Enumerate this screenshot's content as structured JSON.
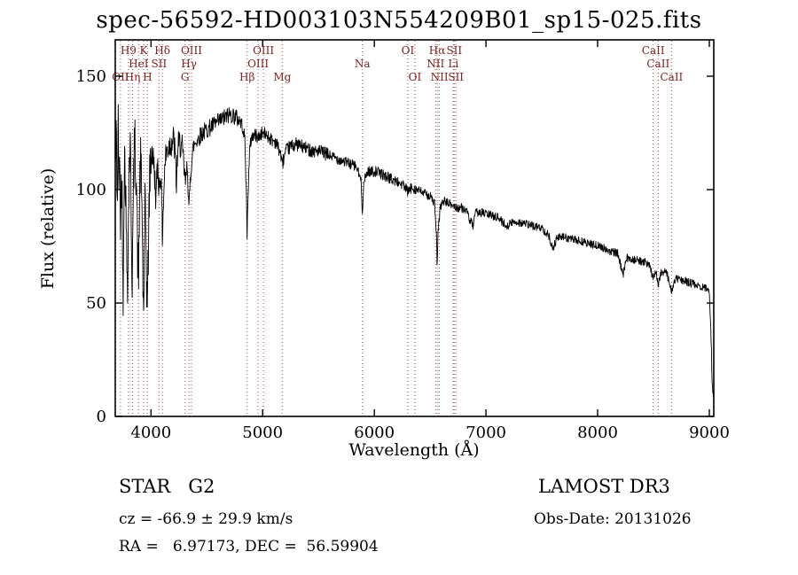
{
  "annotations": {
    "class_label": "STAR   G2",
    "survey": "LAMOST DR3",
    "cz": "cz = -66.9 ± 29.9 km/s",
    "obs_date": "Obs-Date: 20131026",
    "radec": "RA =   6.97173, DEC =  56.59904"
  },
  "chart_data": {
    "type": "line",
    "title": "spec-56592-HD003103N554209B01_sp15-025.fits",
    "xlabel": "Wavelength (Å)",
    "ylabel": "Flux (relative)",
    "xlim": [
      3680,
      9040
    ],
    "ylim": [
      0,
      166
    ],
    "x_ticks": [
      4000,
      5000,
      6000,
      7000,
      8000,
      9000
    ],
    "y_ticks": [
      0,
      50,
      100,
      150
    ],
    "grid": false,
    "legend": "none",
    "line_color": "#000000",
    "marker_color": "#aa4f4f",
    "label_color": "#7e2020",
    "spectral_lines": [
      {
        "wl": 3727,
        "label": "OII",
        "row": 3
      },
      {
        "wl": 3798,
        "label": "H9",
        "row": 1
      },
      {
        "wl": 3835,
        "label": "Hη",
        "row": 3
      },
      {
        "wl": 3889,
        "label": "HeI",
        "row": 2
      },
      {
        "wl": 3934,
        "label": "K",
        "row": 1
      },
      {
        "wl": 3968,
        "label": "H",
        "row": 3
      },
      {
        "wl": 4072,
        "label": "SII",
        "row": 2
      },
      {
        "wl": 4102,
        "label": "Hδ",
        "row": 1
      },
      {
        "wl": 4305,
        "label": "G",
        "row": 3
      },
      {
        "wl": 4340,
        "label": "Hγ",
        "row": 2
      },
      {
        "wl": 4363,
        "label": "OIII",
        "row": 1
      },
      {
        "wl": 4861,
        "label": "Hβ",
        "row": 3
      },
      {
        "wl": 4959,
        "label": "OIII",
        "row": 2
      },
      {
        "wl": 5007,
        "label": "OIII",
        "row": 1
      },
      {
        "wl": 5175,
        "label": "Mg",
        "row": 3
      },
      {
        "wl": 5893,
        "label": "Na",
        "row": 2
      },
      {
        "wl": 6300,
        "label": "OI",
        "row": 1
      },
      {
        "wl": 6363,
        "label": "OI",
        "row": 3
      },
      {
        "wl": 6548,
        "label": "NII",
        "row": 2
      },
      {
        "wl": 6563,
        "label": "Hα",
        "row": 1
      },
      {
        "wl": 6583,
        "label": "NII",
        "row": 3
      },
      {
        "wl": 6708,
        "label": "Li",
        "row": 2
      },
      {
        "wl": 6716,
        "label": "SII",
        "row": 1
      },
      {
        "wl": 6731,
        "label": "SII",
        "row": 3
      },
      {
        "wl": 8498,
        "label": "CaII",
        "row": 1
      },
      {
        "wl": 8542,
        "label": "CaII",
        "row": 2
      },
      {
        "wl": 8662,
        "label": "CaII",
        "row": 3
      }
    ],
    "continuum_points": [
      [
        3682,
        110
      ],
      [
        3690,
        125
      ],
      [
        3698,
        92
      ],
      [
        3706,
        128
      ],
      [
        3714,
        100
      ],
      [
        3722,
        116
      ],
      [
        3727,
        78
      ],
      [
        3734,
        108
      ],
      [
        3742,
        95
      ],
      [
        3750,
        50
      ],
      [
        3758,
        103
      ],
      [
        3766,
        117
      ],
      [
        3774,
        96
      ],
      [
        3782,
        70
      ],
      [
        3790,
        62
      ],
      [
        3798,
        85
      ],
      [
        3806,
        114
      ],
      [
        3814,
        119
      ],
      [
        3822,
        96
      ],
      [
        3830,
        58
      ],
      [
        3838,
        80
      ],
      [
        3846,
        110
      ],
      [
        3854,
        121
      ],
      [
        3862,
        114
      ],
      [
        3870,
        104
      ],
      [
        3880,
        72
      ],
      [
        3889,
        62
      ],
      [
        3898,
        100
      ],
      [
        3906,
        111
      ],
      [
        3914,
        104
      ],
      [
        3922,
        85
      ],
      [
        3930,
        48
      ],
      [
        3938,
        56
      ],
      [
        3946,
        90
      ],
      [
        3954,
        84
      ],
      [
        3962,
        55
      ],
      [
        3970,
        52
      ],
      [
        3978,
        80
      ],
      [
        3986,
        100
      ],
      [
        3994,
        112
      ],
      [
        4002,
        115
      ],
      [
        4010,
        117
      ],
      [
        4026,
        111
      ],
      [
        4045,
        96
      ],
      [
        4060,
        112
      ],
      [
        4072,
        101
      ],
      [
        4088,
        108
      ],
      [
        4102,
        80
      ],
      [
        4112,
        96
      ],
      [
        4126,
        112
      ],
      [
        4140,
        117
      ],
      [
        4160,
        119
      ],
      [
        4180,
        121
      ],
      [
        4200,
        122
      ],
      [
        4215,
        117
      ],
      [
        4226,
        101
      ],
      [
        4240,
        118
      ],
      [
        4260,
        121
      ],
      [
        4280,
        117
      ],
      [
        4300,
        107
      ],
      [
        4310,
        103
      ],
      [
        4325,
        112
      ],
      [
        4340,
        90
      ],
      [
        4352,
        105
      ],
      [
        4363,
        112
      ],
      [
        4380,
        119
      ],
      [
        4400,
        121
      ],
      [
        4430,
        123
      ],
      [
        4460,
        125
      ],
      [
        4490,
        126
      ],
      [
        4520,
        127
      ],
      [
        4550,
        128
      ],
      [
        4580,
        129
      ],
      [
        4610,
        130
      ],
      [
        4640,
        131
      ],
      [
        4670,
        132
      ],
      [
        4700,
        133
      ],
      [
        4730,
        133
      ],
      [
        4760,
        132
      ],
      [
        4780,
        131
      ],
      [
        4800,
        130
      ],
      [
        4820,
        128
      ],
      [
        4840,
        122
      ],
      [
        4853,
        100
      ],
      [
        4861,
        80
      ],
      [
        4870,
        100
      ],
      [
        4885,
        118
      ],
      [
        4900,
        123
      ],
      [
        4920,
        124
      ],
      [
        4940,
        124
      ],
      [
        4959,
        123
      ],
      [
        4980,
        124
      ],
      [
        5000,
        125
      ],
      [
        5040,
        124
      ],
      [
        5080,
        122
      ],
      [
        5120,
        121
      ],
      [
        5160,
        116
      ],
      [
        5175,
        111
      ],
      [
        5185,
        113
      ],
      [
        5210,
        117
      ],
      [
        5250,
        119
      ],
      [
        5300,
        120
      ],
      [
        5350,
        119
      ],
      [
        5400,
        118
      ],
      [
        5450,
        117
      ],
      [
        5500,
        117
      ],
      [
        5550,
        116
      ],
      [
        5600,
        115
      ],
      [
        5650,
        114
      ],
      [
        5700,
        113
      ],
      [
        5750,
        112
      ],
      [
        5800,
        111
      ],
      [
        5840,
        110
      ],
      [
        5880,
        104
      ],
      [
        5893,
        91
      ],
      [
        5906,
        103
      ],
      [
        5940,
        108
      ],
      [
        5980,
        108
      ],
      [
        6020,
        108
      ],
      [
        6100,
        106
      ],
      [
        6180,
        104
      ],
      [
        6260,
        102
      ],
      [
        6300,
        99
      ],
      [
        6340,
        101
      ],
      [
        6380,
        100
      ],
      [
        6420,
        99
      ],
      [
        6460,
        98
      ],
      [
        6500,
        97
      ],
      [
        6540,
        94
      ],
      [
        6556,
        80
      ],
      [
        6563,
        64
      ],
      [
        6570,
        80
      ],
      [
        6590,
        92
      ],
      [
        6620,
        95
      ],
      [
        6660,
        94
      ],
      [
        6700,
        93
      ],
      [
        6740,
        92
      ],
      [
        6780,
        92
      ],
      [
        6820,
        91
      ],
      [
        6860,
        86
      ],
      [
        6885,
        84
      ],
      [
        6910,
        90
      ],
      [
        6950,
        90
      ],
      [
        7020,
        89
      ],
      [
        7100,
        88
      ],
      [
        7180,
        84
      ],
      [
        7260,
        86
      ],
      [
        7340,
        85
      ],
      [
        7420,
        84
      ],
      [
        7500,
        83
      ],
      [
        7560,
        80
      ],
      [
        7600,
        74
      ],
      [
        7640,
        79
      ],
      [
        7700,
        79
      ],
      [
        7780,
        78
      ],
      [
        7860,
        77
      ],
      [
        7940,
        76
      ],
      [
        8020,
        75
      ],
      [
        8100,
        73
      ],
      [
        8180,
        72
      ],
      [
        8228,
        62
      ],
      [
        8260,
        70
      ],
      [
        8340,
        69
      ],
      [
        8420,
        68
      ],
      [
        8460,
        67
      ],
      [
        8498,
        61
      ],
      [
        8520,
        65
      ],
      [
        8542,
        58
      ],
      [
        8570,
        64
      ],
      [
        8620,
        63
      ],
      [
        8662,
        55
      ],
      [
        8700,
        61
      ],
      [
        8760,
        60
      ],
      [
        8820,
        59
      ],
      [
        8880,
        58
      ],
      [
        8940,
        57
      ],
      [
        8990,
        56
      ],
      [
        9000,
        55
      ],
      [
        9012,
        42
      ],
      [
        9026,
        14
      ],
      [
        9036,
        10
      ]
    ],
    "noise": {
      "seed": 42,
      "step": 3,
      "bands": [
        {
          "upto": 4000,
          "amp": 13
        },
        {
          "upto": 4300,
          "amp": 7
        },
        {
          "upto": 4800,
          "amp": 4
        },
        {
          "upto": 5600,
          "amp": 3
        },
        {
          "upto": 6400,
          "amp": 2.4
        },
        {
          "upto": 7400,
          "amp": 2.0
        },
        {
          "upto": 9040,
          "amp": 1.8
        }
      ]
    }
  }
}
